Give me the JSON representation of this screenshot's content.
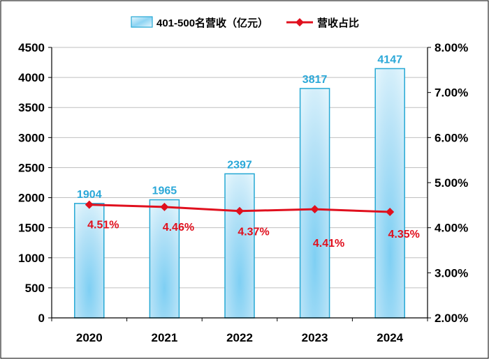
{
  "chart_data": {
    "type": "bar",
    "categories": [
      "2020",
      "2021",
      "2022",
      "2023",
      "2024"
    ],
    "series": [
      {
        "name": "401-500名营收（亿元）",
        "type": "bar",
        "axis": "left",
        "values": [
          1904,
          1965,
          2397,
          3817,
          4147
        ],
        "labels": [
          "1904",
          "1965",
          "2397",
          "3817",
          "4147"
        ]
      },
      {
        "name": "营收占比",
        "type": "line",
        "axis": "right",
        "values": [
          4.51,
          4.46,
          4.37,
          4.41,
          4.35
        ],
        "labels": [
          "4.51%",
          "4.46%",
          "4.37%",
          "4.41%",
          "4.35%"
        ]
      }
    ],
    "y_left": {
      "min": 0,
      "max": 4500,
      "step": 500,
      "ticks": [
        "0",
        "500",
        "1000",
        "1500",
        "2000",
        "2500",
        "3000",
        "3500",
        "4000",
        "4500"
      ]
    },
    "y_right": {
      "min": 2,
      "max": 8,
      "step": 1,
      "ticks": [
        "2.00%",
        "3.00%",
        "4.00%",
        "5.00%",
        "6.00%",
        "7.00%",
        "8.00%"
      ]
    },
    "grid": true,
    "legend_position": "top",
    "colors": {
      "bar_fill": "#B8E3F7",
      "bar_border": "#25A8D4",
      "bar_label": "#2BA8D8",
      "line": "#E0101E",
      "line_label": "#E0101E",
      "grid": "#BFBFBF"
    }
  }
}
